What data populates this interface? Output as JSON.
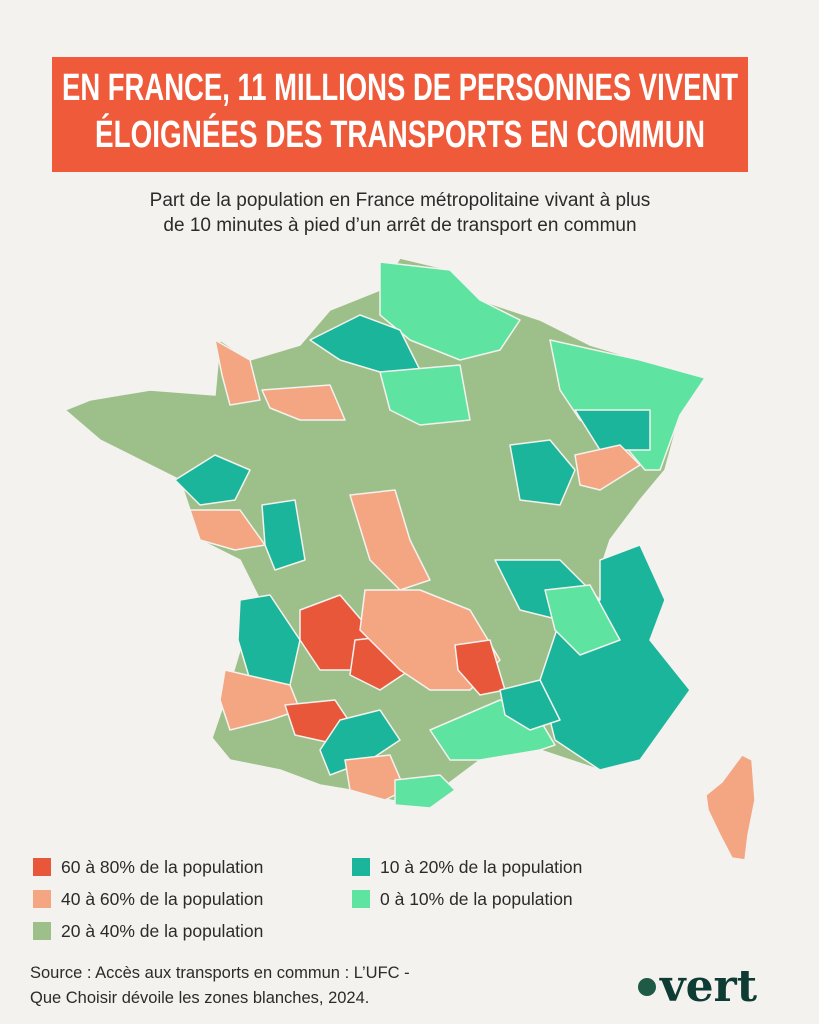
{
  "header": {
    "title_lines": [
      "EN FRANCE, 11 MILLIONS DE PERSONNES VIVENT",
      "ÉLOIGNÉES DES TRANSPORTS EN COMMUN"
    ],
    "subtitle_lines": [
      "Part de la population en France métropolitaine vivant à plus",
      "de 10 minutes à pied d’un arrêt de transport en commun"
    ]
  },
  "legend": {
    "items": [
      {
        "label": "60 à 80% de la population",
        "color": "#e8573a"
      },
      {
        "label": "40 à 60% de la population",
        "color": "#f4a582"
      },
      {
        "label": "20 à 40% de la population",
        "color": "#9dc08b"
      },
      {
        "label": "10 à 20% de la population",
        "color": "#1bb59b"
      },
      {
        "label": "0 à 10% de la population",
        "color": "#5ee3a1"
      }
    ]
  },
  "source_lines": [
    "Source : Accès aux transports en commun : L’UFC -",
    "Que Choisir dévoile les zones blanches, 2024."
  ],
  "logo": "vert"
}
